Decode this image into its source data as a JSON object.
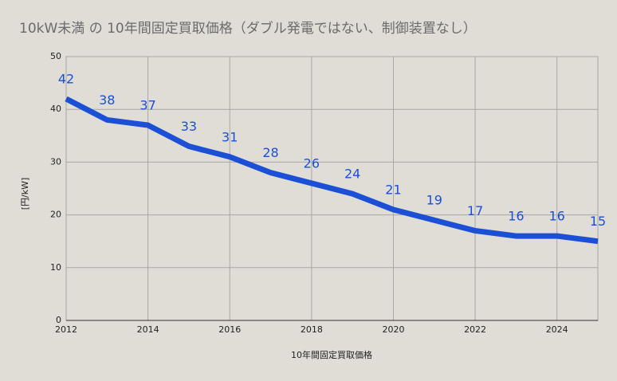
{
  "chart_data": {
    "type": "line",
    "title": "10kW未満 の 10年間固定買取価格（ダブル発電ではない、制御装置なし）",
    "x_label": "10年間固定買取価格",
    "y_label": "[円/kW]",
    "x": [
      2012,
      2013,
      2014,
      2015,
      2016,
      2017,
      2018,
      2019,
      2020,
      2021,
      2022,
      2023,
      2024,
      2025
    ],
    "values": [
      42,
      38,
      37,
      33,
      31,
      28,
      26,
      24,
      21,
      19,
      17,
      16,
      16,
      15
    ],
    "color": "#1a4fd6",
    "xlim": [
      2012,
      2025
    ],
    "xticks": [
      2012,
      2014,
      2016,
      2018,
      2020,
      2022,
      2024
    ],
    "ylim": [
      0,
      50
    ],
    "yticks": [
      0,
      10,
      20,
      30,
      40,
      50
    ],
    "grid": true,
    "data_labels": true
  }
}
